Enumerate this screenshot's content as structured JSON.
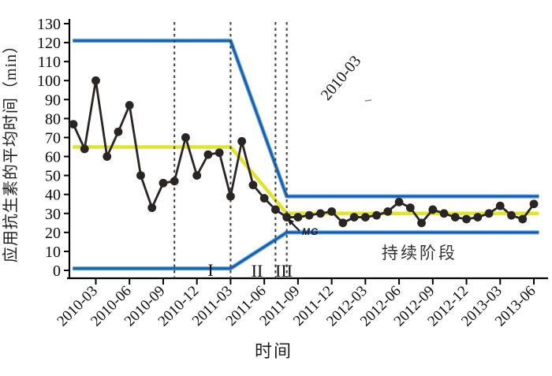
{
  "chart_data": {
    "type": "line",
    "description": "SPC control chart of mean antibiotic administration time",
    "xlabel": "时间",
    "ylabel": "应用抗生素的平均时间（min）",
    "ylim": [
      0,
      130
    ],
    "yticks": [
      0,
      10,
      20,
      30,
      40,
      50,
      60,
      70,
      80,
      90,
      100,
      110,
      120,
      130
    ],
    "categories": [
      "2010-03",
      "2010-06",
      "2010-09",
      "2010-12",
      "2011-03",
      "2011-06",
      "2011-09",
      "2011-12",
      "2012-03",
      "2012-06",
      "2012-09",
      "2012-12",
      "2013-03",
      "2013-06"
    ],
    "months": [
      "2010-01",
      "2010-02",
      "2010-03",
      "2010-04",
      "2010-05",
      "2010-06",
      "2010-07",
      "2010-08",
      "2010-09",
      "2010-10",
      "2010-11",
      "2010-12",
      "2011-01",
      "2011-02",
      "2011-03",
      "2011-04",
      "2011-05",
      "2011-06",
      "2011-07",
      "2011-08",
      "2011-09",
      "2011-10",
      "2011-11",
      "2011-12",
      "2012-01",
      "2012-02",
      "2012-03",
      "2012-04",
      "2012-05",
      "2012-06",
      "2012-07",
      "2012-08",
      "2012-09",
      "2012-10",
      "2012-11",
      "2012-12",
      "2013-01",
      "2013-02",
      "2013-03",
      "2013-04",
      "2013-05",
      "2013-06"
    ],
    "series": [
      {
        "name": "monthly-mean-antibiotic-time",
        "values": [
          77,
          64,
          100,
          60,
          73,
          87,
          50,
          33,
          46,
          47,
          70,
          50,
          61,
          62,
          39,
          68,
          45,
          38,
          32,
          28,
          28,
          29,
          30,
          31,
          25,
          28,
          28,
          29,
          31,
          36,
          33,
          25,
          32,
          30,
          28,
          27,
          28,
          30,
          34,
          29,
          27,
          35
        ]
      }
    ],
    "control_limits": {
      "initial": {
        "ucl": 121,
        "center": 65,
        "lcl": 1
      },
      "sustain": {
        "ucl": 39,
        "center": 30,
        "lcl": 20
      },
      "bend_start_month": "2011-03",
      "bend_end_month": "2011-08",
      "bend_start_index": 14,
      "bend_end_index": 19
    },
    "phase_labels": [
      "I",
      "II",
      "III"
    ],
    "dashed_lines": {
      "months": [
        "2010-10",
        "2011-03",
        "2011-07",
        "2011-08"
      ],
      "indices": [
        9,
        14,
        18,
        19
      ]
    },
    "annotations": {
      "upper_label": "2010-03",
      "mg": "MG",
      "sustain_text": "持续阶段"
    },
    "legend": {
      "visible": false
    },
    "grid": false,
    "colors": {
      "limit_blue_dark": "#1d57a6",
      "limit_blue_light": "#4e9ed9",
      "center_yellow": "#e2e32f",
      "series_black": "#2a2522",
      "dashed_gray": "#3f3f3f",
      "axis_black": "#000000"
    }
  }
}
